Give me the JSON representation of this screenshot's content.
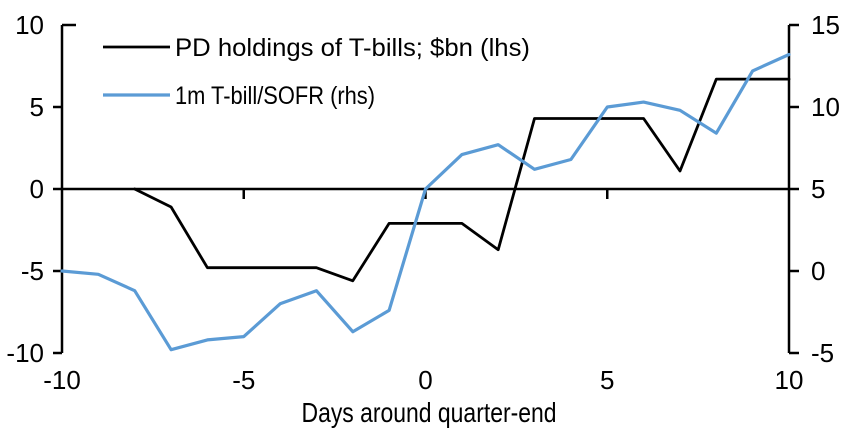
{
  "chart_data": {
    "type": "line",
    "title": "",
    "xlabel": "Days around quarter-end",
    "x_axis": {
      "ticks": [
        -10,
        -5,
        0,
        5,
        10
      ],
      "range": [
        -10,
        10
      ]
    },
    "left_axis": {
      "ticks": [
        10,
        5,
        0,
        -5,
        -10
      ],
      "range": [
        -10,
        10
      ]
    },
    "right_axis": {
      "ticks": [
        15,
        10,
        5,
        0,
        -5
      ],
      "range": [
        -5,
        15
      ]
    },
    "grid": false,
    "legend_position": "top-left",
    "background_color": "#ffffff",
    "axis_color": "#000000",
    "series": [
      {
        "name": "PD holdings of T-bills; $bn (lhs)",
        "axis": "left",
        "color": "#000000",
        "x": [
          -8,
          -7,
          -6,
          -5,
          -4,
          -3,
          -2,
          -1,
          0,
          1,
          2,
          3,
          4,
          5,
          6,
          7,
          8,
          9,
          10
        ],
        "values": [
          0,
          -1.1,
          -4.8,
          -4.8,
          -4.8,
          -4.8,
          -5.6,
          -2.1,
          -2.1,
          -2.1,
          -3.7,
          4.3,
          4.3,
          4.3,
          4.3,
          1.1,
          6.7,
          6.7,
          6.7
        ]
      },
      {
        "name": "1m T-bill/SOFR (rhs)",
        "axis": "right",
        "color": "#5B9BD5",
        "x": [
          -10,
          -9,
          -8,
          -7,
          -6,
          -5,
          -4,
          -3,
          -2,
          -1,
          0,
          1,
          2,
          3,
          4,
          5,
          6,
          7,
          8,
          9,
          10
        ],
        "values": [
          0.0,
          -0.2,
          -1.2,
          -4.8,
          -4.2,
          -4.0,
          -2.0,
          -1.2,
          -3.7,
          -2.4,
          5.0,
          7.1,
          7.7,
          6.2,
          6.8,
          10.0,
          10.3,
          9.8,
          8.4,
          12.2,
          13.2
        ]
      }
    ]
  }
}
